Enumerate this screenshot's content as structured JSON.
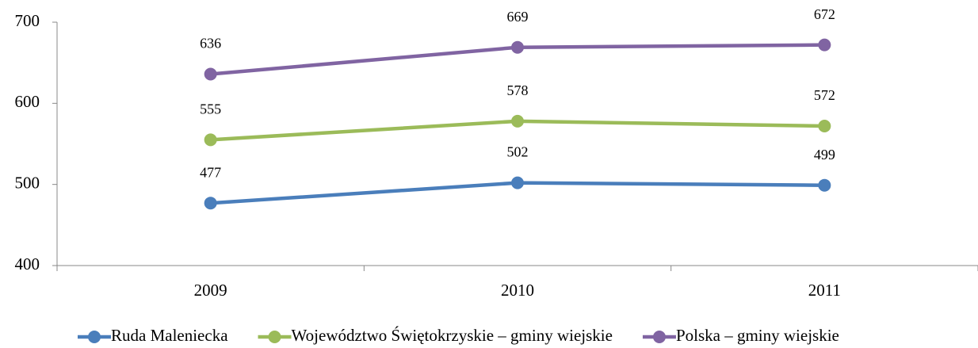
{
  "chart_data": {
    "type": "line",
    "categories": [
      "2009",
      "2010",
      "2011"
    ],
    "series": [
      {
        "name": "Ruda Maleniecka",
        "color": "#4a7ebb",
        "values": [
          477,
          502,
          499
        ]
      },
      {
        "name": "Województwo Świętokrzyskie – gminy wiejskie",
        "color": "#9bbb59",
        "values": [
          555,
          578,
          572
        ]
      },
      {
        "name": "Polska – gminy wiejskie",
        "color": "#8064a2",
        "values": [
          636,
          669,
          672
        ]
      }
    ],
    "ylim": [
      400,
      700
    ],
    "yticks": [
      400,
      500,
      600,
      700
    ],
    "grid": false,
    "legend": "bottom"
  }
}
